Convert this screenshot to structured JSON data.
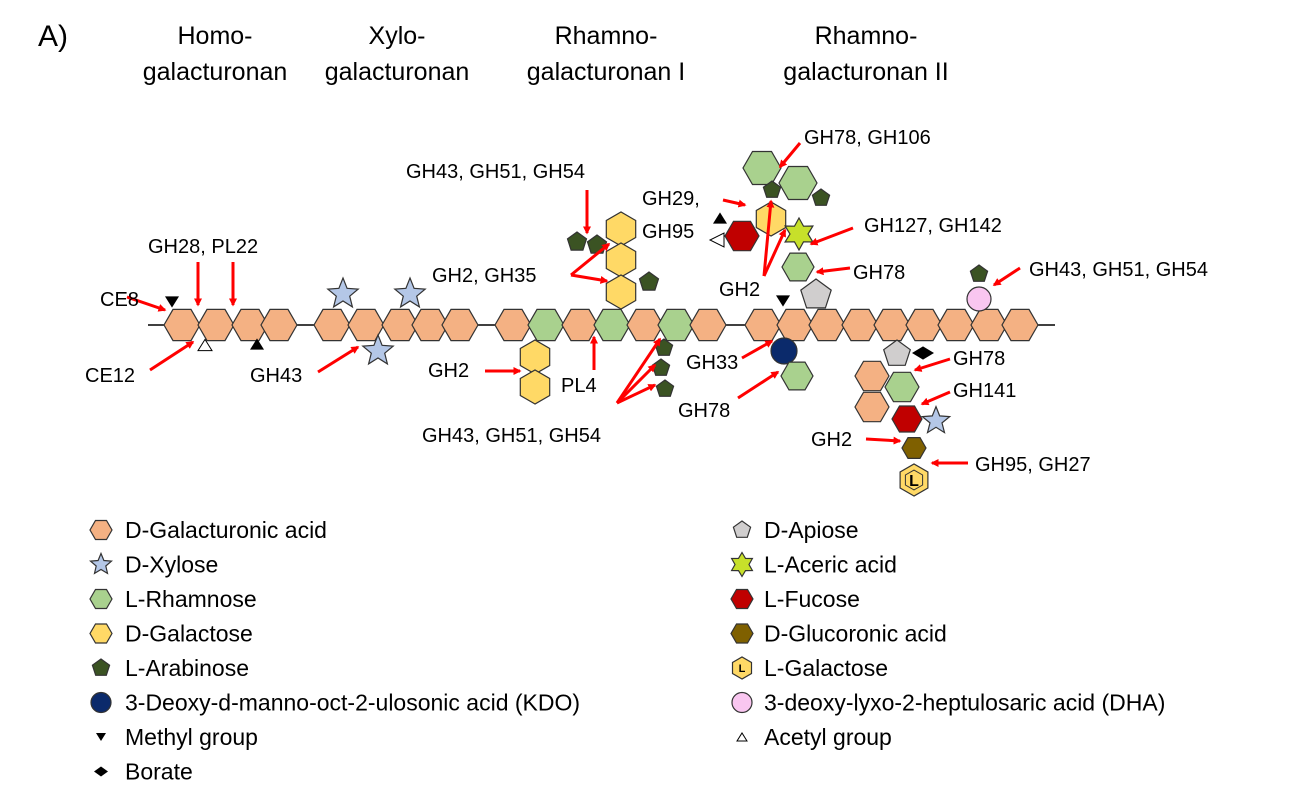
{
  "panel_label": "A)",
  "regions": [
    {
      "line1": "Homo-",
      "line2": "galacturonan"
    },
    {
      "line1": "Xylo-",
      "line2": "galacturonan"
    },
    {
      "line1": "Rhamno-",
      "line2": "galacturonan I"
    },
    {
      "line1": "Rhamno-",
      "line2": "galacturonan II"
    }
  ],
  "enzymes": {
    "ce8": "CE8",
    "gh28_pl22": "GH28, PL22",
    "ce12": "CE12",
    "gh43_xylo": "GH43",
    "gh43_51_54_top": "GH43, GH51, GH54",
    "gh2_gh35": "GH2, GH35",
    "gh2_left": "GH2",
    "pl4": "PL4",
    "gh43_51_54_bottom": "GH43, GH51, GH54",
    "gh78_gh106": "GH78, GH106",
    "gh29": "GH29,",
    "gh95_top": "GH95",
    "gh127_gh142": "GH127, GH142",
    "gh2_mid": "GH2",
    "gh78_mid": "GH78",
    "gh43_51_54_right": "GH43, GH51, GH54",
    "gh33": "GH33",
    "gh78_low": "GH78",
    "gh78_right": "GH78",
    "gh141": "GH141",
    "gh2_right": "GH2",
    "gh95_gh27": "GH95, GH27"
  },
  "l_galactose_letter": "L",
  "legend": {
    "left": [
      {
        "label": "D-Galacturonic acid",
        "icon": "hexagon",
        "color": "#F4B183"
      },
      {
        "label": "D-Xylose",
        "icon": "star",
        "color": "#B4C7E7"
      },
      {
        "label": "L-Rhamnose",
        "icon": "hexagon",
        "color": "#A9D18E"
      },
      {
        "label": "D-Galactose",
        "icon": "hexagon",
        "color": "#FFD966"
      },
      {
        "label": "L-Arabinose",
        "icon": "pentagon",
        "color": "#3B5323"
      },
      {
        "label": "3-Deoxy-d-manno-oct-2-ulosonic acid (KDO)",
        "icon": "circle",
        "color": "#0B2A6B"
      },
      {
        "label": "Methyl group",
        "icon": "triangle-down",
        "color": "#000000"
      },
      {
        "label": "Borate",
        "icon": "diamond",
        "color": "#000000"
      }
    ],
    "right": [
      {
        "label": "D-Apiose",
        "icon": "pentagon",
        "color": "#D0CECE"
      },
      {
        "label": "L-Aceric acid",
        "icon": "star6",
        "color": "#C7E02A"
      },
      {
        "label": "L-Fucose",
        "icon": "hexagon",
        "color": "#C00000"
      },
      {
        "label": "D-Glucoronic acid",
        "icon": "hexagon",
        "color": "#7F6000"
      },
      {
        "label": "L-Galactose",
        "icon": "hexagon-l",
        "color": "#FFD966"
      },
      {
        "label": "3-deoxy-lyxo-2-heptulosaric acid (DHA)",
        "icon": "circle",
        "color": "#F9C6F0"
      },
      {
        "label": "Acetyl group",
        "icon": "triangle-up-open",
        "color": "#000000"
      }
    ]
  }
}
